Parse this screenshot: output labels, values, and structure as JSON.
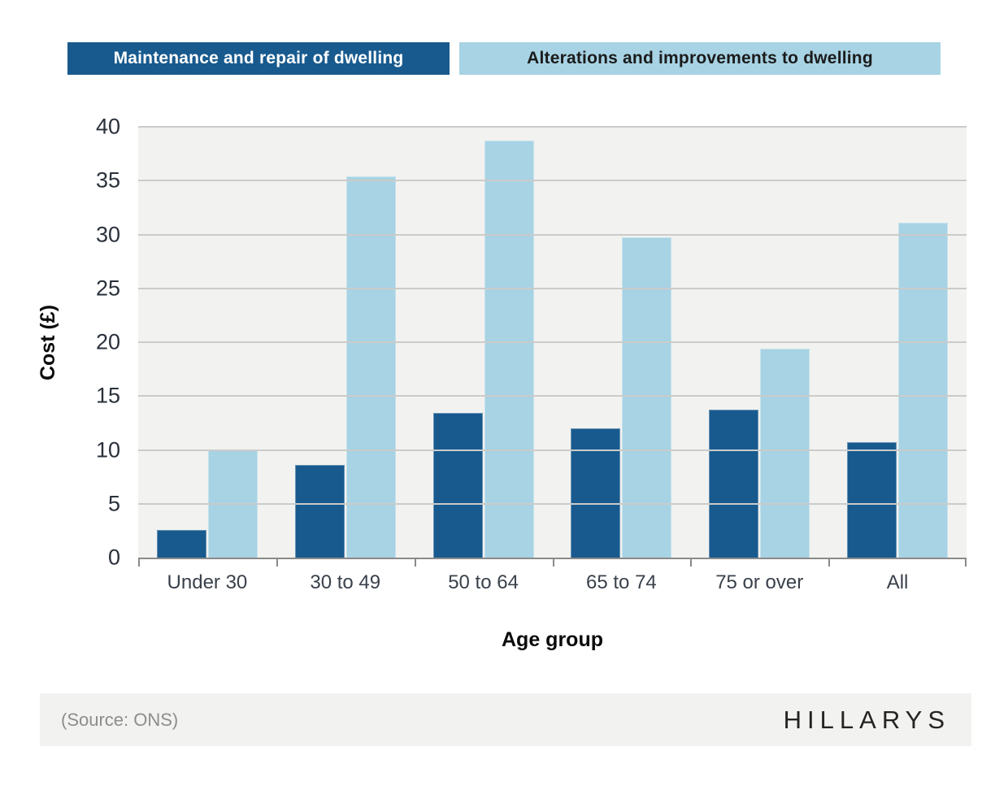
{
  "legend": {
    "items": [
      {
        "label": "Maintenance and repair of dwelling",
        "bg": "#185a8e",
        "fg": "#ffffff"
      },
      {
        "label": "Alterations and improvements to dwelling",
        "bg": "#a7d3e4",
        "fg": "#1b1b1b"
      }
    ]
  },
  "chart_data": {
    "type": "bar",
    "title": "",
    "categories": [
      "Under 30",
      "30 to 49",
      "50 to 64",
      "65 to 74",
      "75 or over",
      "All"
    ],
    "series": [
      {
        "name": "Maintenance and repair of dwelling",
        "color": "#185a8e",
        "values": [
          2.6,
          8.6,
          13.4,
          12.0,
          13.7,
          10.7
        ]
      },
      {
        "name": "Alterations and improvements to dwelling",
        "color": "#a7d3e4",
        "values": [
          10.0,
          35.4,
          38.7,
          29.7,
          19.4,
          31.1
        ]
      }
    ],
    "xlabel": "Age group",
    "ylabel": "Cost (£)",
    "ylim": [
      0,
      40
    ],
    "yticks": [
      0,
      5,
      10,
      15,
      20,
      25,
      30,
      35,
      40
    ],
    "grid": true,
    "legend_position": "top",
    "plot_bg": "#f2f2f0",
    "gridline_color": "#cbcbc9",
    "axis_line_color": "#8a8a8a"
  },
  "footer": {
    "source": "(Source: ONS)",
    "brand": "HILLARYS"
  }
}
